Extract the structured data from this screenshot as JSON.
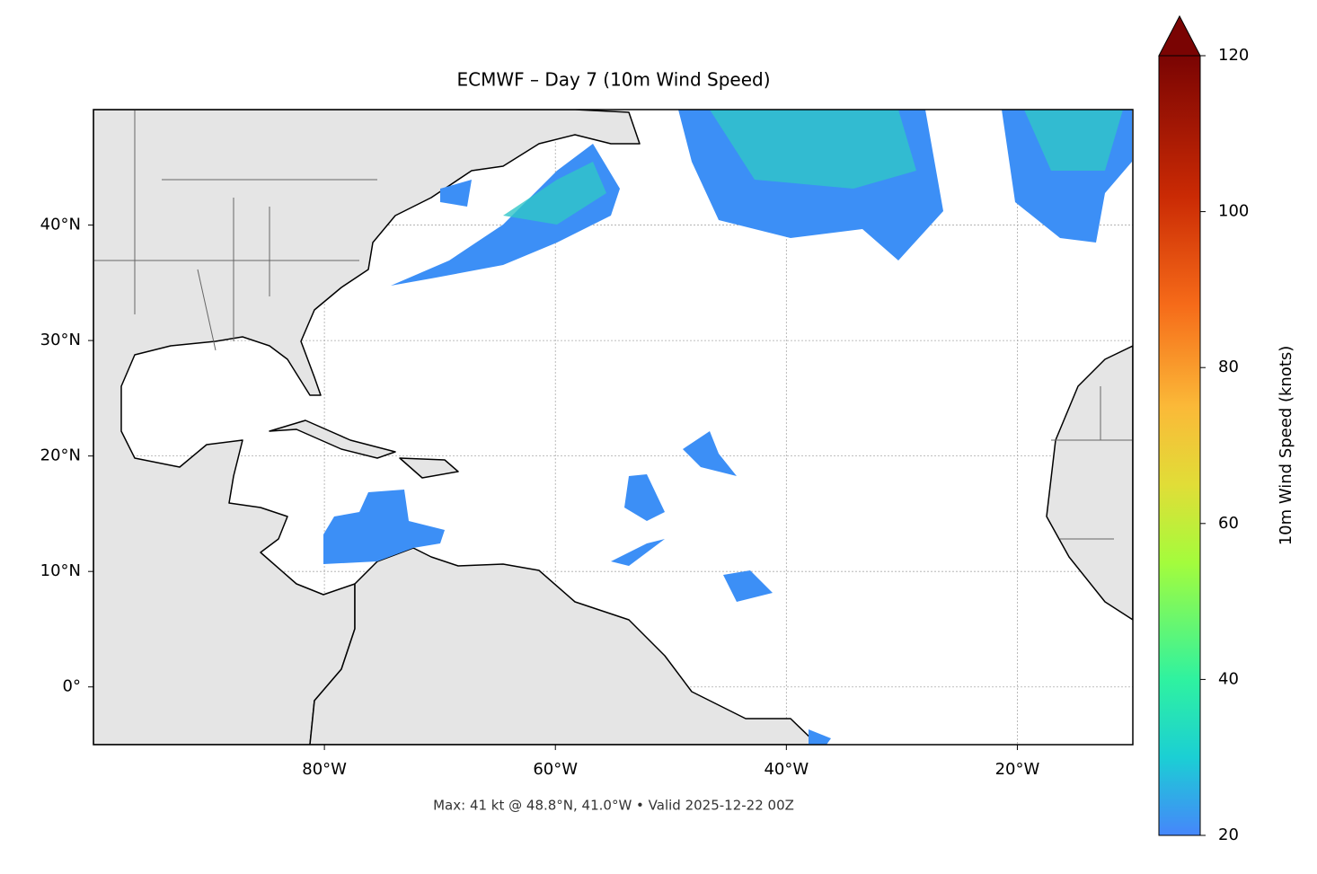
{
  "chart_data": {
    "type": "map",
    "title": "ECMWF – Day 7 (10m Wind Speed)",
    "footer": "Max: 41 kt @ 48.8°N, 41.0°W • Valid 2025-12-22 00Z",
    "xlim": [
      -100,
      -10
    ],
    "ylim": [
      -5,
      50
    ],
    "xticks": [
      {
        "value": -80,
        "label": "80°W"
      },
      {
        "value": -60,
        "label": "60°W"
      },
      {
        "value": -40,
        "label": "40°W"
      },
      {
        "value": -20,
        "label": "20°W"
      }
    ],
    "yticks": [
      {
        "value": 0,
        "label": "0°"
      },
      {
        "value": 10,
        "label": "10°N"
      },
      {
        "value": 20,
        "label": "20°N"
      },
      {
        "value": 30,
        "label": "30°N"
      },
      {
        "value": 40,
        "label": "40°N"
      }
    ],
    "grid": true,
    "colorbar": {
      "label": "10m Wind Speed (knots)",
      "lim": [
        20,
        120
      ],
      "ticks": [
        20,
        40,
        60,
        80,
        100,
        120
      ],
      "extend": "max"
    }
  }
}
